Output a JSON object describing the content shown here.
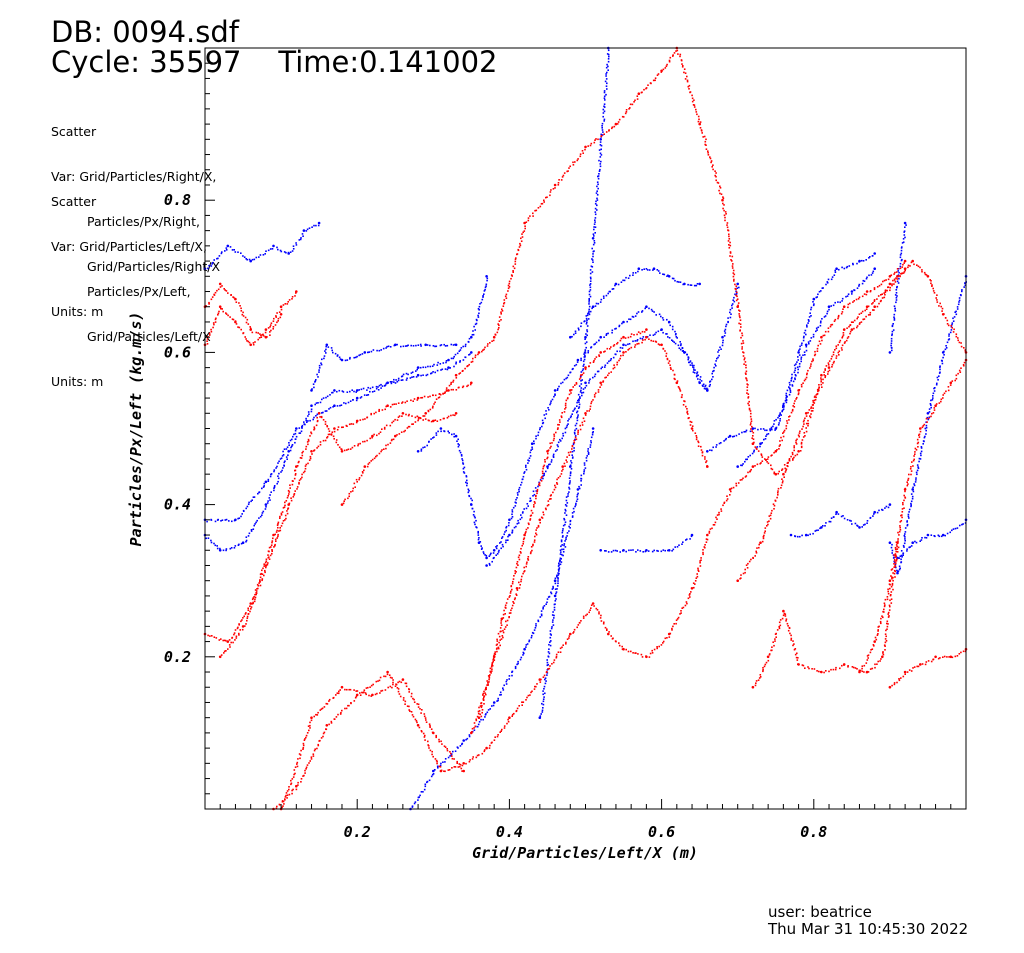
{
  "header": {
    "db": "DB: 0094.sdf",
    "cycle": "Cycle: 35597",
    "time": "Time:0.141002"
  },
  "legend": [
    {
      "plot_type": "Scatter",
      "var_lines": [
        "Var: Grid/Particles/Right/X,",
        "Particles/Px/Right,",
        "Grid/Particles/Right/X"
      ],
      "units": "Units: m"
    },
    {
      "plot_type": "Scatter",
      "var_lines": [
        "Var: Grid/Particles/Left/X,",
        "Particles/Px/Left,",
        "Grid/Particles/Left/X"
      ],
      "units": "Units: m"
    }
  ],
  "footer": {
    "user": "user: beatrice",
    "date": "Thu Mar 31 10:45:30 2022"
  },
  "colors": {
    "right_series": "#0000ff",
    "left_series": "#ff0000",
    "axes": "#000000"
  },
  "chart_data": {
    "type": "scatter",
    "xlabel": "Grid/Particles/Left/X (m)",
    "ylabel": "Particles/Px/Left (kg.m/s)",
    "xlim": [
      0.0,
      1.0
    ],
    "ylim": [
      0.0,
      1.0
    ],
    "xticks": [
      {
        "value": 0.2,
        "label": "0.2"
      },
      {
        "value": 0.4,
        "label": "0.4"
      },
      {
        "value": 0.6,
        "label": "0.6"
      },
      {
        "value": 0.8,
        "label": "0.8"
      }
    ],
    "yticks": [
      {
        "value": 0.2,
        "label": "0.2"
      },
      {
        "value": 0.4,
        "label": "0.4"
      },
      {
        "value": 0.6,
        "label": "0.6"
      },
      {
        "value": 0.8,
        "label": "0.8"
      }
    ],
    "legend_placement": "top-left",
    "grid": false,
    "series": [
      {
        "color": "#0000ff",
        "strands": [
          {
            "x": [
              0.0,
              0.02,
              0.05,
              0.08,
              0.11,
              0.14,
              0.17,
              0.2,
              0.24,
              0.28,
              0.32,
              0.35,
              0.37
            ],
            "y": [
              0.36,
              0.34,
              0.35,
              0.4,
              0.47,
              0.53,
              0.55,
              0.55,
              0.56,
              0.58,
              0.59,
              0.62,
              0.7
            ]
          },
          {
            "x": [
              0.0,
              0.04,
              0.08,
              0.12,
              0.15,
              0.17,
              0.2,
              0.24,
              0.28,
              0.32,
              0.35
            ],
            "y": [
              0.38,
              0.38,
              0.43,
              0.5,
              0.52,
              0.53,
              0.54,
              0.56,
              0.57,
              0.58,
              0.6
            ]
          },
          {
            "x": [
              0.0,
              0.03,
              0.06,
              0.09,
              0.11,
              0.13,
              0.15
            ],
            "y": [
              0.71,
              0.74,
              0.72,
              0.74,
              0.73,
              0.76,
              0.77
            ]
          },
          {
            "x": [
              0.14,
              0.16,
              0.18,
              0.21,
              0.25,
              0.29,
              0.33
            ],
            "y": [
              0.55,
              0.61,
              0.59,
              0.6,
              0.61,
              0.61,
              0.61
            ]
          },
          {
            "x": [
              0.28,
              0.31,
              0.33,
              0.35,
              0.36,
              0.37,
              0.38,
              0.4,
              0.43,
              0.46,
              0.49,
              0.52,
              0.55,
              0.58,
              0.61,
              0.63,
              0.65,
              0.66,
              0.68,
              0.7
            ],
            "y": [
              0.47,
              0.5,
              0.49,
              0.4,
              0.35,
              0.33,
              0.34,
              0.38,
              0.48,
              0.55,
              0.59,
              0.62,
              0.64,
              0.66,
              0.64,
              0.6,
              0.56,
              0.55,
              0.62,
              0.69
            ]
          },
          {
            "x": [
              0.48,
              0.51,
              0.54,
              0.57,
              0.59,
              0.61,
              0.63,
              0.65
            ],
            "y": [
              0.62,
              0.66,
              0.69,
              0.71,
              0.71,
              0.7,
              0.69,
              0.69
            ]
          },
          {
            "x": [
              0.37,
              0.4,
              0.45,
              0.5,
              0.55,
              0.6,
              0.63,
              0.66
            ],
            "y": [
              0.32,
              0.36,
              0.45,
              0.56,
              0.61,
              0.63,
              0.6,
              0.55
            ]
          },
          {
            "x": [
              0.27,
              0.3,
              0.34,
              0.38,
              0.42,
              0.46,
              0.49,
              0.51
            ],
            "y": [
              0.0,
              0.05,
              0.09,
              0.14,
              0.21,
              0.3,
              0.42,
              0.5
            ]
          },
          {
            "x": [
              0.44,
              0.46,
              0.48,
              0.5,
              0.51,
              0.52,
              0.53
            ],
            "y": [
              0.12,
              0.28,
              0.45,
              0.62,
              0.75,
              0.88,
              1.0
            ]
          },
          {
            "x": [
              0.52,
              0.55,
              0.58,
              0.61,
              0.64
            ],
            "y": [
              0.34,
              0.34,
              0.34,
              0.34,
              0.36
            ]
          },
          {
            "x": [
              0.66,
              0.69,
              0.72,
              0.75,
              0.78,
              0.8,
              0.83,
              0.86,
              0.88
            ],
            "y": [
              0.47,
              0.49,
              0.5,
              0.5,
              0.6,
              0.67,
              0.71,
              0.72,
              0.73
            ]
          },
          {
            "x": [
              0.7,
              0.73,
              0.76,
              0.79,
              0.82,
              0.85,
              0.88
            ],
            "y": [
              0.45,
              0.48,
              0.53,
              0.61,
              0.66,
              0.68,
              0.71
            ]
          },
          {
            "x": [
              0.77,
              0.79,
              0.81,
              0.83,
              0.86,
              0.88,
              0.9
            ],
            "y": [
              0.36,
              0.36,
              0.37,
              0.39,
              0.37,
              0.39,
              0.4
            ]
          },
          {
            "x": [
              0.9,
              0.91,
              0.93,
              0.95,
              0.97,
              1.0
            ],
            "y": [
              0.35,
              0.31,
              0.42,
              0.52,
              0.6,
              0.7
            ]
          },
          {
            "x": [
              0.91,
              0.93,
              0.95,
              0.97,
              1.0
            ],
            "y": [
              0.33,
              0.35,
              0.36,
              0.36,
              0.38
            ]
          },
          {
            "x": [
              0.9,
              0.91,
              0.92
            ],
            "y": [
              0.6,
              0.7,
              0.77
            ]
          }
        ]
      },
      {
        "color": "#ff0000",
        "strands": [
          {
            "x": [
              0.0,
              0.02,
              0.04,
              0.06,
              0.08,
              0.1,
              0.12
            ],
            "y": [
              0.61,
              0.66,
              0.64,
              0.61,
              0.63,
              0.66,
              0.68
            ]
          },
          {
            "x": [
              0.0,
              0.02,
              0.04,
              0.06,
              0.08,
              0.1
            ],
            "y": [
              0.66,
              0.69,
              0.67,
              0.63,
              0.62,
              0.65
            ]
          },
          {
            "x": [
              0.0,
              0.03,
              0.06,
              0.09,
              0.12,
              0.15,
              0.18,
              0.22,
              0.26,
              0.3,
              0.33
            ],
            "y": [
              0.23,
              0.22,
              0.27,
              0.36,
              0.45,
              0.52,
              0.47,
              0.49,
              0.52,
              0.51,
              0.52
            ]
          },
          {
            "x": [
              0.02,
              0.05,
              0.08,
              0.11,
              0.14,
              0.17,
              0.2,
              0.24,
              0.28,
              0.32,
              0.35
            ],
            "y": [
              0.2,
              0.24,
              0.32,
              0.4,
              0.47,
              0.5,
              0.51,
              0.53,
              0.54,
              0.55,
              0.56
            ]
          },
          {
            "x": [
              0.09,
              0.12,
              0.16,
              0.2,
              0.24,
              0.28,
              0.31,
              0.34,
              0.37,
              0.4,
              0.44,
              0.48,
              0.51,
              0.53,
              0.55,
              0.58,
              0.61,
              0.64,
              0.66,
              0.69,
              0.72,
              0.75,
              0.78,
              0.81,
              0.84,
              0.87,
              0.9,
              0.92
            ],
            "y": [
              0.0,
              0.03,
              0.11,
              0.15,
              0.18,
              0.11,
              0.05,
              0.06,
              0.08,
              0.12,
              0.17,
              0.23,
              0.27,
              0.23,
              0.21,
              0.2,
              0.23,
              0.29,
              0.36,
              0.42,
              0.45,
              0.47,
              0.55,
              0.62,
              0.66,
              0.68,
              0.7,
              0.72
            ]
          },
          {
            "x": [
              0.1,
              0.14,
              0.18,
              0.22,
              0.26,
              0.3,
              0.34
            ],
            "y": [
              0.0,
              0.12,
              0.16,
              0.15,
              0.17,
              0.1,
              0.05
            ]
          },
          {
            "x": [
              0.18,
              0.21,
              0.25,
              0.29,
              0.33,
              0.36,
              0.38,
              0.42,
              0.46,
              0.5,
              0.54,
              0.57,
              0.6,
              0.62,
              0.65,
              0.68,
              0.7,
              0.72,
              0.75,
              0.78,
              0.81,
              0.84,
              0.87,
              0.9,
              0.92
            ],
            "y": [
              0.4,
              0.45,
              0.49,
              0.52,
              0.57,
              0.6,
              0.62,
              0.77,
              0.82,
              0.87,
              0.9,
              0.94,
              0.97,
              1.0,
              0.9,
              0.8,
              0.66,
              0.48,
              0.44,
              0.47,
              0.57,
              0.63,
              0.66,
              0.69,
              0.71
            ]
          },
          {
            "x": [
              0.35,
              0.38,
              0.41,
              0.44,
              0.47,
              0.5,
              0.52,
              0.55,
              0.58,
              0.6,
              0.62,
              0.64,
              0.66
            ],
            "y": [
              0.1,
              0.2,
              0.29,
              0.38,
              0.45,
              0.52,
              0.56,
              0.6,
              0.62,
              0.61,
              0.56,
              0.5,
              0.45
            ]
          },
          {
            "x": [
              0.36,
              0.39,
              0.42,
              0.45,
              0.48,
              0.5,
              0.52,
              0.55,
              0.58
            ],
            "y": [
              0.12,
              0.25,
              0.36,
              0.47,
              0.55,
              0.58,
              0.6,
              0.62,
              0.63
            ]
          },
          {
            "x": [
              0.7,
              0.73,
              0.76,
              0.79,
              0.82,
              0.85,
              0.88,
              0.91,
              0.93,
              0.95,
              0.97,
              1.0
            ],
            "y": [
              0.3,
              0.35,
              0.44,
              0.52,
              0.58,
              0.63,
              0.66,
              0.7,
              0.72,
              0.7,
              0.65,
              0.6
            ]
          },
          {
            "x": [
              0.72,
              0.74,
              0.76,
              0.78,
              0.81,
              0.84,
              0.87,
              0.89,
              0.91
            ],
            "y": [
              0.16,
              0.2,
              0.26,
              0.19,
              0.18,
              0.19,
              0.18,
              0.2,
              0.35
            ]
          },
          {
            "x": [
              0.86,
              0.88,
              0.9,
              0.92,
              0.94,
              0.96,
              0.98,
              1.0
            ],
            "y": [
              0.18,
              0.22,
              0.3,
              0.42,
              0.5,
              0.53,
              0.56,
              0.59
            ]
          },
          {
            "x": [
              0.9,
              0.92,
              0.94,
              0.96,
              0.98,
              1.0
            ],
            "y": [
              0.16,
              0.18,
              0.19,
              0.2,
              0.2,
              0.21
            ]
          }
        ]
      }
    ]
  }
}
